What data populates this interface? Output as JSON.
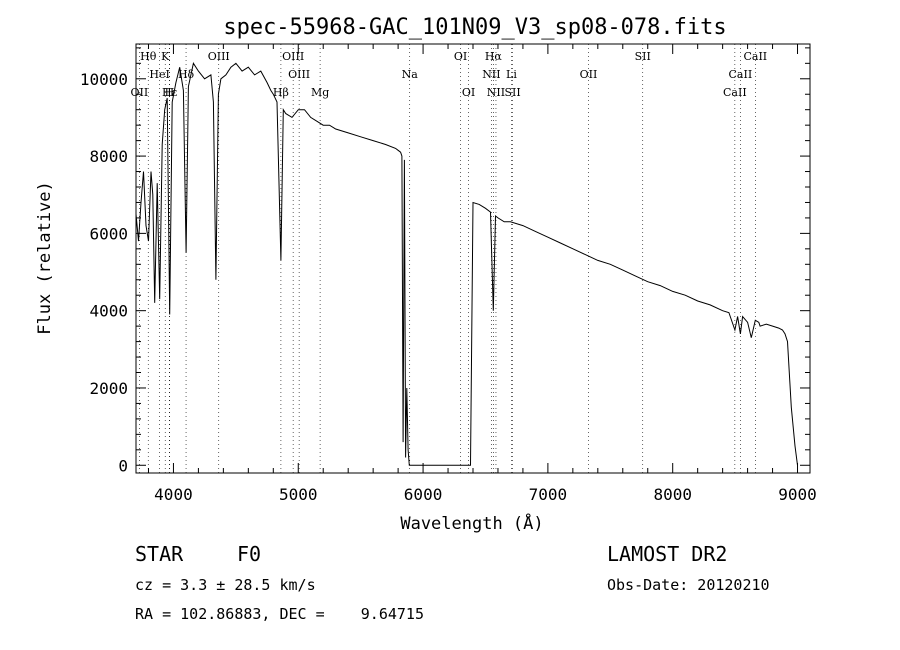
{
  "chart_data": {
    "type": "line",
    "title": "spec-55968-GAC_101N09_V3_sp08-078.fits",
    "xlabel": "Wavelength (Å)",
    "ylabel": "Flux (relative)",
    "xlim": [
      3700,
      9100
    ],
    "ylim": [
      -200,
      10900
    ],
    "xticks": [
      4000,
      5000,
      6000,
      7000,
      8000,
      9000
    ],
    "yticks": [
      0,
      2000,
      4000,
      6000,
      8000,
      10000
    ],
    "series": [
      {
        "x": [
          3700,
          3720,
          3740,
          3760,
          3780,
          3800,
          3820,
          3835,
          3850,
          3870,
          3890,
          3910,
          3930,
          3950,
          3970,
          3990,
          4020,
          4050,
          4080,
          4101,
          4120,
          4160,
          4200,
          4250,
          4300,
          4320,
          4340,
          4360,
          4380,
          4420,
          4460,
          4500,
          4550,
          4600,
          4650,
          4700,
          4750,
          4780,
          4800,
          4830,
          4861,
          4880,
          4900,
          4950,
          5000,
          5050,
          5100,
          5150,
          5200,
          5250,
          5300,
          5400,
          5500,
          5600,
          5700,
          5780,
          5800,
          5820,
          5830,
          5840,
          5850,
          5860,
          5870,
          5880,
          5890,
          5900,
          6000,
          6100,
          6200,
          6300,
          6350,
          6360,
          6380,
          6400,
          6450,
          6500,
          6540,
          6563,
          6580,
          6600,
          6650,
          6700,
          6800,
          6900,
          7000,
          7100,
          7200,
          7300,
          7400,
          7500,
          7600,
          7700,
          7800,
          7900,
          8000,
          8100,
          8200,
          8300,
          8400,
          8450,
          8498,
          8520,
          8542,
          8560,
          8600,
          8630,
          8662,
          8690,
          8700,
          8750,
          8800,
          8850,
          8880,
          8900,
          8920,
          8950,
          8980,
          9000
        ],
        "y": [
          6500,
          5800,
          6800,
          7600,
          6200,
          5800,
          7600,
          7000,
          4200,
          7300,
          4300,
          8300,
          9200,
          9500,
          3900,
          9400,
          9900,
          10300,
          9700,
          5500,
          9800,
          10400,
          10200,
          10000,
          10100,
          9400,
          4800,
          9600,
          10000,
          10100,
          10300,
          10400,
          10200,
          10300,
          10100,
          10200,
          9900,
          9700,
          9600,
          9400,
          5300,
          9200,
          9100,
          9000,
          9200,
          9200,
          9000,
          8900,
          8800,
          8800,
          8700,
          8600,
          8500,
          8400,
          8300,
          8200,
          8150,
          8100,
          8000,
          600,
          7900,
          200,
          2000,
          400,
          0,
          0,
          0,
          0,
          0,
          0,
          0,
          0,
          0,
          6800,
          6750,
          6650,
          6550,
          4000,
          6450,
          6400,
          6300,
          6300,
          6200,
          6050,
          5900,
          5750,
          5600,
          5450,
          5300,
          5200,
          5050,
          4900,
          4750,
          4650,
          4500,
          4400,
          4250,
          4150,
          4000,
          3950,
          3500,
          3850,
          3400,
          3850,
          3700,
          3300,
          3750,
          3700,
          3600,
          3650,
          3600,
          3550,
          3500,
          3400,
          3200,
          1500,
          500,
          0
        ]
      }
    ],
    "lines": [
      {
        "label": "Hθ",
        "x": 3798,
        "row": 1
      },
      {
        "label": "K",
        "x": 3934,
        "row": 1
      },
      {
        "label": "HeI",
        "x": 3889,
        "row": 2
      },
      {
        "label": "Hδ",
        "x": 4101,
        "row": 2
      },
      {
        "label": "OII",
        "x": 3727,
        "row": 3
      },
      {
        "label": "Hε",
        "x": 3970,
        "row": 3
      },
      {
        "label": "H",
        "x": 3968,
        "row": 3
      },
      {
        "label": "OIII",
        "x": 4363,
        "row": 1
      },
      {
        "label": "OIII",
        "x": 4959,
        "row": 1
      },
      {
        "label": "OIII",
        "x": 5007,
        "row": 2
      },
      {
        "label": "Hβ",
        "x": 4861,
        "row": 3
      },
      {
        "label": "Mg",
        "x": 5175,
        "row": 3
      },
      {
        "label": "Na",
        "x": 5893,
        "row": 2
      },
      {
        "label": "OI",
        "x": 6300,
        "row": 1
      },
      {
        "label": "OI",
        "x": 6364,
        "row": 3
      },
      {
        "label": "Hα",
        "x": 6563,
        "row": 1
      },
      {
        "label": "NII",
        "x": 6548,
        "row": 2
      },
      {
        "label": "Li",
        "x": 6708,
        "row": 2
      },
      {
        "label": "NII",
        "x": 6584,
        "row": 3
      },
      {
        "label": "SII",
        "x": 6717,
        "row": 3
      },
      {
        "label": "OII",
        "x": 7325,
        "row": 2
      },
      {
        "label": "SII",
        "x": 7760,
        "row": 1
      },
      {
        "label": "CaII",
        "x": 8662,
        "row": 1
      },
      {
        "label": "CaII",
        "x": 8542,
        "row": 2
      },
      {
        "label": "CaII",
        "x": 8498,
        "row": 3
      }
    ]
  },
  "info": {
    "object_class": "STAR",
    "subclass": "F0",
    "survey": "LAMOST DR2",
    "cz": "cz = 3.3 ± 28.5 km/s",
    "obs_date": "Obs-Date: 20120210",
    "coords": "RA = 102.86883, DEC =    9.64715"
  }
}
